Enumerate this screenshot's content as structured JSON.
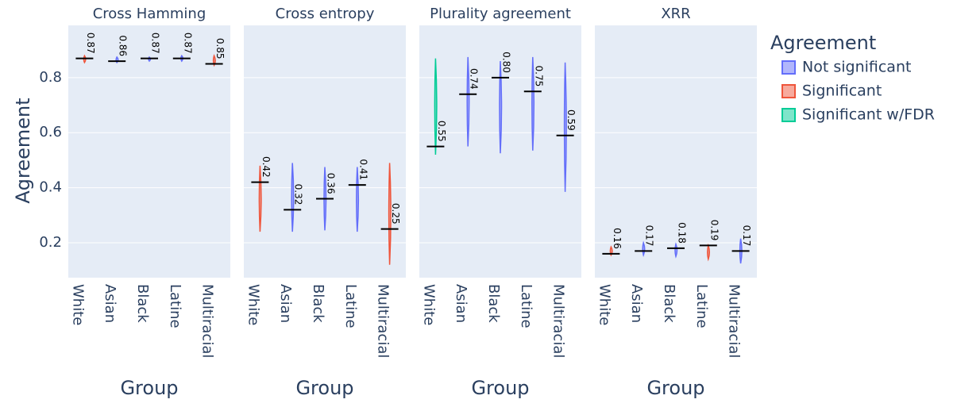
{
  "yaxis": {
    "title": "Agreement",
    "ylim": [
      0.073,
      0.99
    ],
    "yticks": [
      0.2,
      0.4,
      0.6,
      0.8
    ]
  },
  "legend": {
    "title": "Agreement",
    "entries": [
      {
        "name": "Not significant",
        "color": "#636efa"
      },
      {
        "name": "Significant",
        "color": "#ef553b"
      },
      {
        "name": "Significant w/FDR",
        "color": "#00cc96"
      }
    ]
  },
  "chart_data": [
    {
      "type": "violin",
      "title": "Cross Hamming",
      "x_title": "Group",
      "categories": [
        "White",
        "Asian",
        "Black",
        "Latine",
        "Multiracial"
      ],
      "values": [
        0.87,
        0.86,
        0.87,
        0.87,
        0.85
      ],
      "mins": [
        0.855,
        0.855,
        0.86,
        0.86,
        0.845
      ],
      "maxs": [
        0.88,
        0.875,
        0.875,
        0.88,
        0.88
      ],
      "status": [
        "Significant",
        "Not significant",
        "Not significant",
        "Not significant",
        "Significant"
      ]
    },
    {
      "type": "violin",
      "title": "Cross entropy",
      "x_title": "Group",
      "categories": [
        "White",
        "Asian",
        "Black",
        "Latine",
        "Multiracial"
      ],
      "values": [
        0.42,
        0.32,
        0.36,
        0.41,
        0.25
      ],
      "mins": [
        0.24,
        0.24,
        0.245,
        0.24,
        0.12
      ],
      "maxs": [
        0.48,
        0.49,
        0.475,
        0.475,
        0.49
      ],
      "status": [
        "Significant",
        "Not significant",
        "Not significant",
        "Not significant",
        "Significant"
      ]
    },
    {
      "type": "violin",
      "title": "Plurality agreement",
      "x_title": "Group",
      "categories": [
        "White",
        "Asian",
        "Black",
        "Latine",
        "Multiracial"
      ],
      "values": [
        0.55,
        0.74,
        0.8,
        0.75,
        0.59
      ],
      "value_labels": [
        "0.55",
        "0.74",
        "0.80",
        "0.75",
        "0.59"
      ],
      "mins": [
        0.52,
        0.55,
        0.525,
        0.535,
        0.385
      ],
      "maxs": [
        0.87,
        0.875,
        0.86,
        0.875,
        0.855
      ],
      "status": [
        "Significant w/FDR",
        "Not significant",
        "Not significant",
        "Not significant",
        "Not significant"
      ]
    },
    {
      "type": "violin",
      "title": "XRR",
      "x_title": "Group",
      "categories": [
        "White",
        "Asian",
        "Black",
        "Latine",
        "Multiracial"
      ],
      "values": [
        0.16,
        0.17,
        0.18,
        0.19,
        0.17
      ],
      "mins": [
        0.155,
        0.155,
        0.15,
        0.14,
        0.125
      ],
      "maxs": [
        0.185,
        0.2,
        0.195,
        0.19,
        0.215
      ],
      "status": [
        "Significant",
        "Not significant",
        "Not significant",
        "Significant",
        "Not significant"
      ]
    }
  ]
}
